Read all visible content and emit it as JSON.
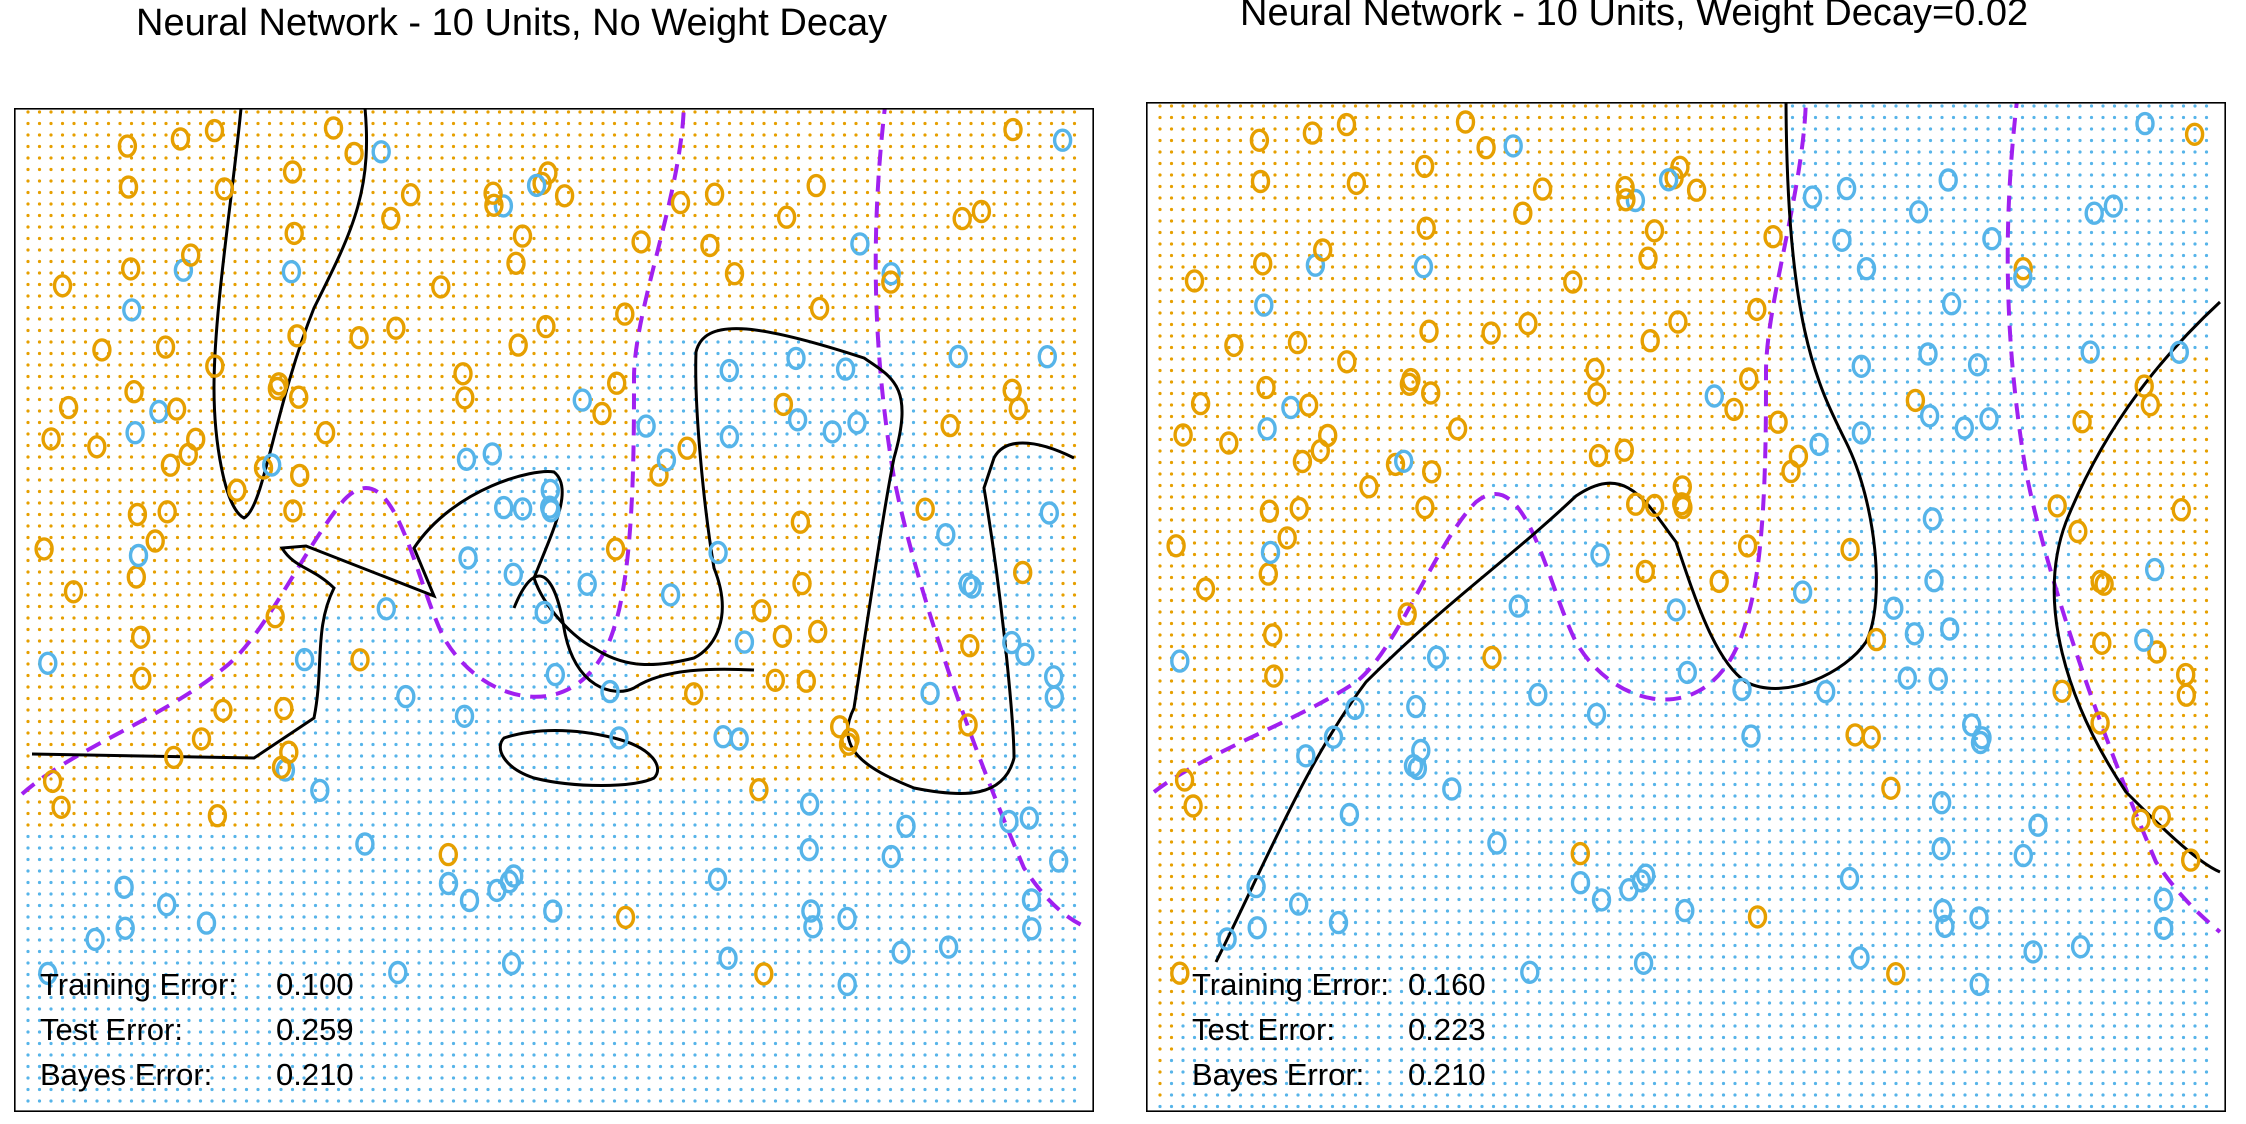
{
  "colors": {
    "orange": "#E69F00",
    "blue": "#56B4E9",
    "bayes_boundary": "#A020F0",
    "model_boundary": "#000000"
  },
  "chart_data": [
    {
      "type": "scatter",
      "title": "Neural Network - 10 Units, No Weight Decay",
      "grid_points": true,
      "point_marker": "o",
      "boundary_styles": {
        "model": "solid black",
        "bayes": "dashed purple"
      },
      "errors": [
        {
          "label": "Training Error:",
          "value": "0.100"
        },
        {
          "label": "Test Error:",
          "value": "0.259"
        },
        {
          "label": "Bayes Error:",
          "value": "0.210"
        }
      ]
    },
    {
      "type": "scatter",
      "title": "Neural Network - 10 Units, Weight Decay=0.02",
      "grid_points": true,
      "point_marker": "o",
      "boundary_styles": {
        "model": "solid black",
        "bayes": "dashed purple"
      },
      "errors": [
        {
          "label": "Training Error:",
          "value": "0.160"
        },
        {
          "label": "Test Error:",
          "value": "0.223"
        },
        {
          "label": "Bayes Error:",
          "value": "0.210"
        }
      ]
    }
  ]
}
